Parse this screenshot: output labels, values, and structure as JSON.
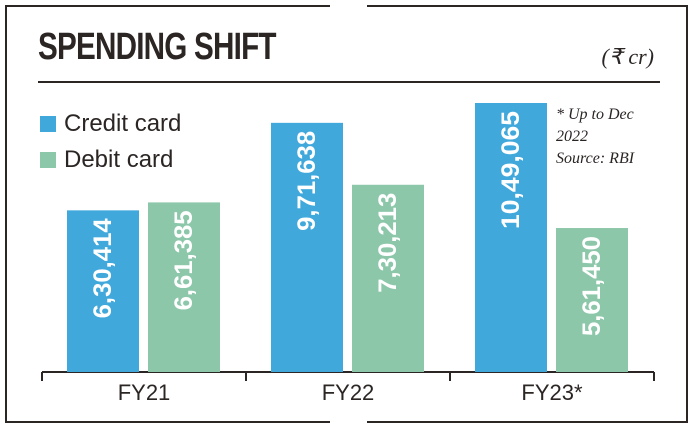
{
  "chart_data": {
    "type": "bar",
    "title": "SPENDING SHIFT",
    "unit": "(₹ cr)",
    "categories": [
      "FY21",
      "FY22",
      "FY23*"
    ],
    "series": [
      {
        "name": "Credit card",
        "color": "#41a8dc",
        "values": [
          630414,
          971638,
          1049065
        ],
        "labels": [
          "6,30,414",
          "9,71,638",
          "10,49,065"
        ]
      },
      {
        "name": "Debit card",
        "color": "#8cc7aa",
        "values": [
          661385,
          730213,
          561450
        ],
        "labels": [
          "6,61,385",
          "7,30,213",
          "5,61,450"
        ]
      }
    ],
    "note": [
      "* Up to Dec",
      "2022",
      "Source: RBI"
    ],
    "grid": false,
    "legend": "top-left"
  }
}
